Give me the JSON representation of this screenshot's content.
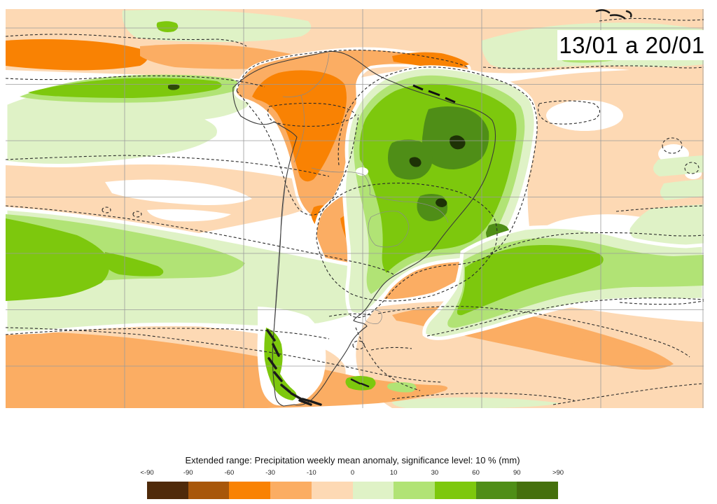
{
  "map": {
    "date_label": "13/01 a 20/01",
    "region": "South America precipitation anomaly map",
    "colors": {
      "negative_strong": "#f98203",
      "negative_moderate": "#fbad63",
      "negative_weak": "#fdd9b4",
      "positive_weak": "#dff2c6",
      "positive_moderate": "#b1e375",
      "positive_strong": "#7dc80d",
      "positive_intense": "#4f8e17",
      "grid_line": "#9b9b9b",
      "coastline": "#3a3a3a",
      "significance_contour": "#2b2b2b"
    }
  },
  "legend": {
    "title": "Extended range: Precipitation weekly mean anomaly, significance level: 10 % (mm)",
    "ticks": [
      "<-90",
      "-90",
      "-60",
      "-30",
      "-10",
      "0",
      "10",
      "30",
      "60",
      "90",
      ">90"
    ],
    "colors": [
      "#4f2a0a",
      "#a8570a",
      "#f98203",
      "#fbad63",
      "#fdd9b4",
      "#dff2c6",
      "#b1e375",
      "#7dc80d",
      "#4f8e17",
      "#45700d"
    ]
  }
}
